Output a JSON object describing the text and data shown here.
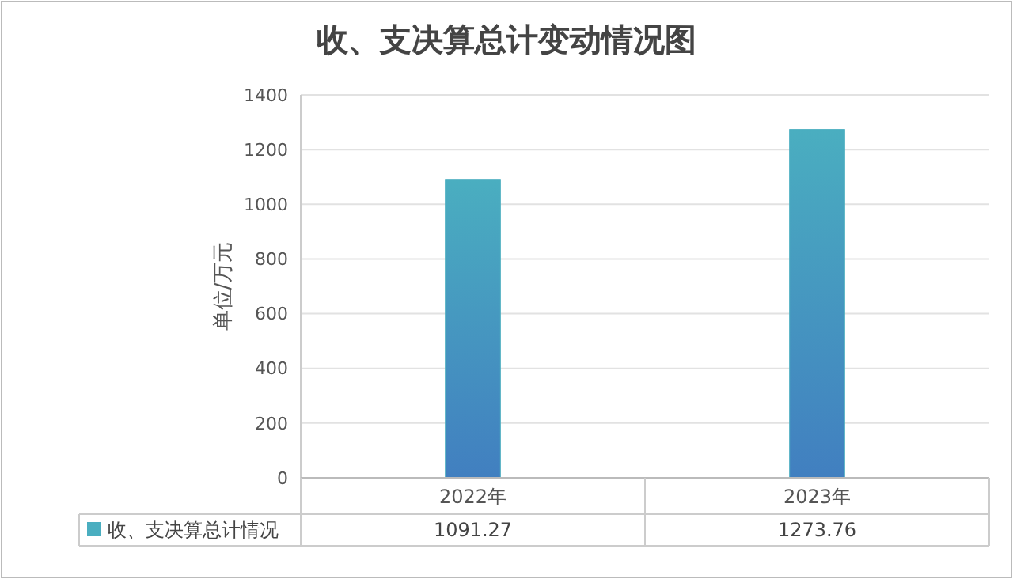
{
  "chart_data": {
    "type": "bar",
    "title": "收、支决算总计变动情况图",
    "ylabel": "单位/万元",
    "categories": [
      "2022年",
      "2023年"
    ],
    "series": [
      {
        "name": "收、支决算总计情况",
        "color": "#4aaec0",
        "values": [
          1091.27,
          1273.76
        ]
      }
    ],
    "ylim": [
      0,
      1400
    ],
    "yticks": [
      0,
      200,
      400,
      600,
      800,
      1000,
      1200,
      1400
    ],
    "grid": "y",
    "legend": "bottom",
    "data_labels": true
  }
}
